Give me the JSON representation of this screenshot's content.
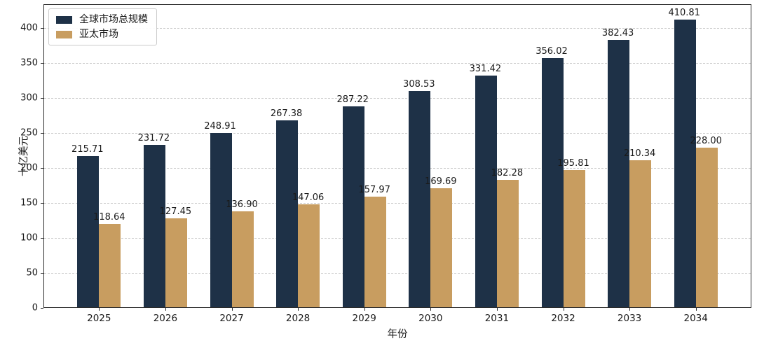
{
  "chart_data": {
    "type": "bar",
    "title": "",
    "categories": [
      "2025",
      "2026",
      "2027",
      "2028",
      "2029",
      "2030",
      "2031",
      "2032",
      "2033",
      "2034"
    ],
    "series": [
      {
        "name": "全球市场总规模",
        "color": "#1e3147",
        "values": [
          215.71,
          231.72,
          248.91,
          267.38,
          287.22,
          308.53,
          331.42,
          356.02,
          382.43,
          410.81
        ]
      },
      {
        "name": "亚太市场",
        "color": "#c89d60",
        "values": [
          118.64,
          127.45,
          136.9,
          147.06,
          157.97,
          169.69,
          182.28,
          195.81,
          210.34,
          228.0
        ]
      }
    ],
    "xlabel": "年份",
    "ylabel": "十亿美元",
    "ylim": [
      0,
      434
    ],
    "yticks": [
      0,
      50,
      100,
      150,
      200,
      250,
      300,
      350,
      400
    ],
    "grid": "horizontal-dashed",
    "legend_position": "upper-left",
    "value_label_decimals": 2,
    "colors": {
      "grid": "#c9c9c9",
      "spine": "#2a2a2a",
      "text": "#1a1a1a",
      "background": "#ffffff"
    }
  }
}
